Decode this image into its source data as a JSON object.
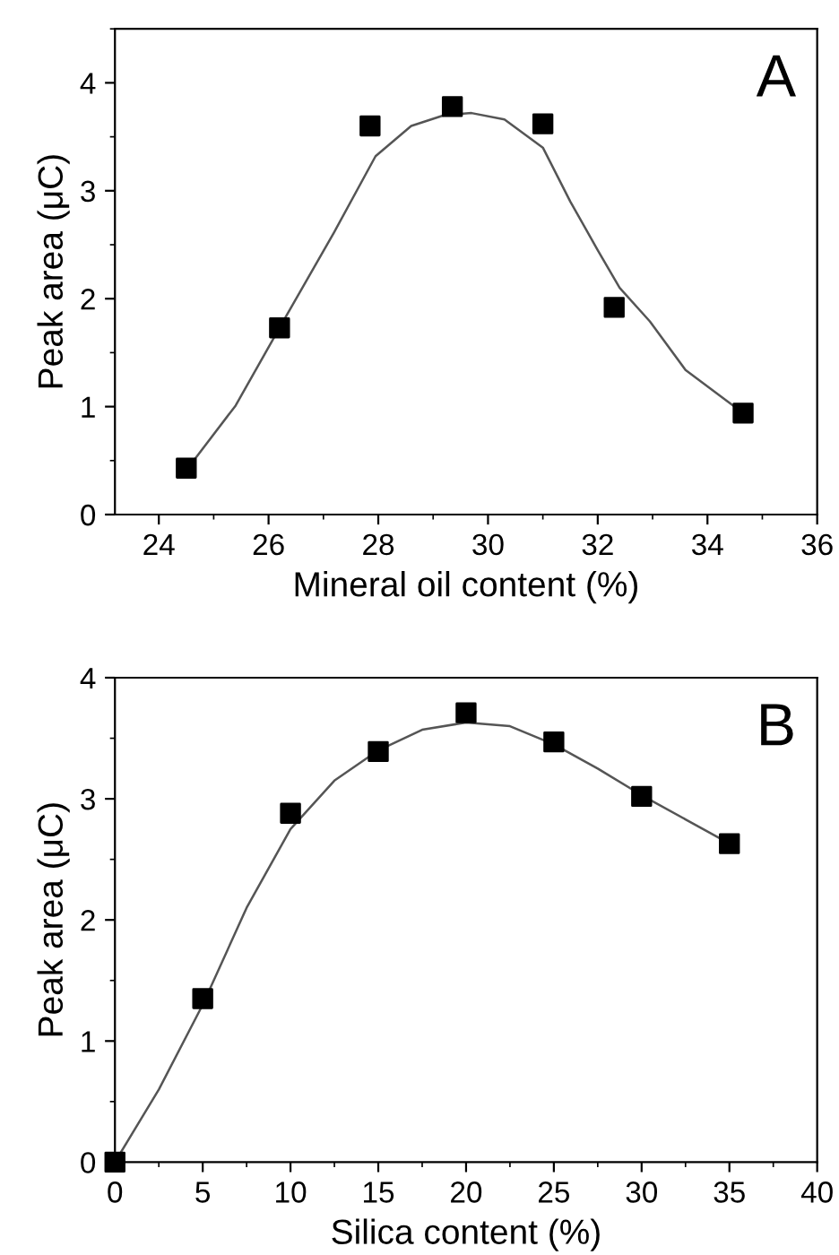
{
  "chart_data": [
    {
      "type": "scatter",
      "xlabel": "Mineral oil content (%)",
      "ylabel": "Peak area (μC)",
      "annotations": [
        "A"
      ],
      "marker": "square",
      "grid": false,
      "legend": false,
      "xlim": [
        23.2,
        36
      ],
      "xticks": [
        24,
        26,
        28,
        30,
        32,
        34,
        36
      ],
      "ylim": [
        0,
        4.5
      ],
      "yticks": [
        0,
        1,
        2,
        3,
        4
      ],
      "series": [
        {
          "color": "#000000",
          "x": [
            24.5,
            26.2,
            27.85,
            29.35,
            31.0,
            32.3,
            34.65
          ],
          "values": [
            0.43,
            1.73,
            3.6,
            3.78,
            3.62,
            1.92,
            0.94
          ]
        },
        {
          "type": "line",
          "color": "#555555",
          "marker": "none",
          "x": [
            24.65,
            25.4,
            26.3,
            27.2,
            27.95,
            28.6,
            29.2,
            29.7,
            30.3,
            31.0,
            31.5,
            32.0,
            32.4,
            32.95,
            33.6,
            34.6
          ],
          "values": [
            0.51,
            1.01,
            1.82,
            2.62,
            3.32,
            3.6,
            3.7,
            3.72,
            3.66,
            3.4,
            2.9,
            2.45,
            2.1,
            1.79,
            1.34,
            0.96
          ]
        }
      ]
    },
    {
      "type": "scatter",
      "xlabel": "Silica content (%)",
      "ylabel": "Peak area (μC)",
      "annotations": [
        "B"
      ],
      "marker": "square",
      "grid": false,
      "legend": false,
      "xlim": [
        0,
        40
      ],
      "xticks": [
        0,
        5,
        10,
        15,
        20,
        25,
        30,
        35,
        40
      ],
      "ylim": [
        0,
        4
      ],
      "yticks": [
        0,
        1,
        2,
        3,
        4
      ],
      "series": [
        {
          "color": "#000000",
          "x": [
            0,
            5,
            10,
            15,
            20,
            25,
            30,
            35
          ],
          "values": [
            0,
            1.35,
            2.88,
            3.39,
            3.71,
            3.47,
            3.02,
            2.63
          ]
        },
        {
          "type": "line",
          "color": "#555555",
          "marker": "none",
          "x": [
            0,
            2.5,
            5,
            7.5,
            10,
            12.5,
            15,
            17.5,
            20,
            22.5,
            25,
            27.5,
            30,
            32.5,
            35
          ],
          "values": [
            0,
            0.6,
            1.3,
            2.1,
            2.75,
            3.15,
            3.4,
            3.57,
            3.63,
            3.6,
            3.45,
            3.25,
            3.03,
            2.83,
            2.63
          ]
        }
      ]
    }
  ]
}
